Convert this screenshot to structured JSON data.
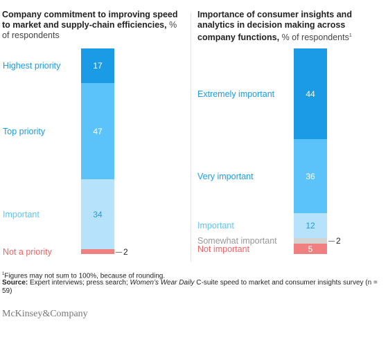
{
  "chart_data": [
    {
      "type": "bar",
      "subtype": "stacked-100",
      "title": "Company commitment to improving speed to market and supply-chain efficiencies,",
      "subtitle": "% of respondents",
      "categories": [
        "Highest priority",
        "Top priority",
        "Important",
        "Not a priority"
      ],
      "values": [
        17,
        47,
        34,
        2
      ],
      "colors": [
        "#1b9be6",
        "#5cc3fa",
        "#b6e2fb",
        "#f08080"
      ],
      "value_text_colors": [
        "#ffffff",
        "#ffffff",
        "#1b9be6",
        "#222222"
      ],
      "category_colors": [
        "#1b9be6",
        "#1b9be6",
        "#5cc3fa",
        "#f06464"
      ],
      "callout": [
        false,
        false,
        false,
        true
      ]
    },
    {
      "type": "bar",
      "subtype": "stacked-100",
      "title": "Importance of consumer insights and analytics in decision making across company functions,",
      "subtitle": "% of respondents",
      "subtitle_note": "1",
      "categories": [
        "Extremely important",
        "Very important",
        "Important",
        "Somewhat important",
        "Not important"
      ],
      "values": [
        44,
        36,
        12,
        2,
        5
      ],
      "colors": [
        "#1b9be6",
        "#5cc3fa",
        "#b6e2fb",
        "#d3d3d3",
        "#f08080"
      ],
      "value_text_colors": [
        "#ffffff",
        "#ffffff",
        "#1b9be6",
        "#222222",
        "#ffffff"
      ],
      "category_colors": [
        "#1b9be6",
        "#1b9be6",
        "#5cc3fa",
        "#999999",
        "#f06464"
      ],
      "callout": [
        false,
        false,
        false,
        true,
        false
      ]
    }
  ],
  "footnotes": {
    "note_marker": "1",
    "note_text": "Figures may not sum to 100%, because of rounding.",
    "source_label": "Source:",
    "source_text": "Expert interviews; press search;",
    "source_italic": "Women’s Wear Daily",
    "source_rest": "C-suite speed to market and consumer insights survey (n = 59)"
  },
  "brand": "McKinsey&Company"
}
